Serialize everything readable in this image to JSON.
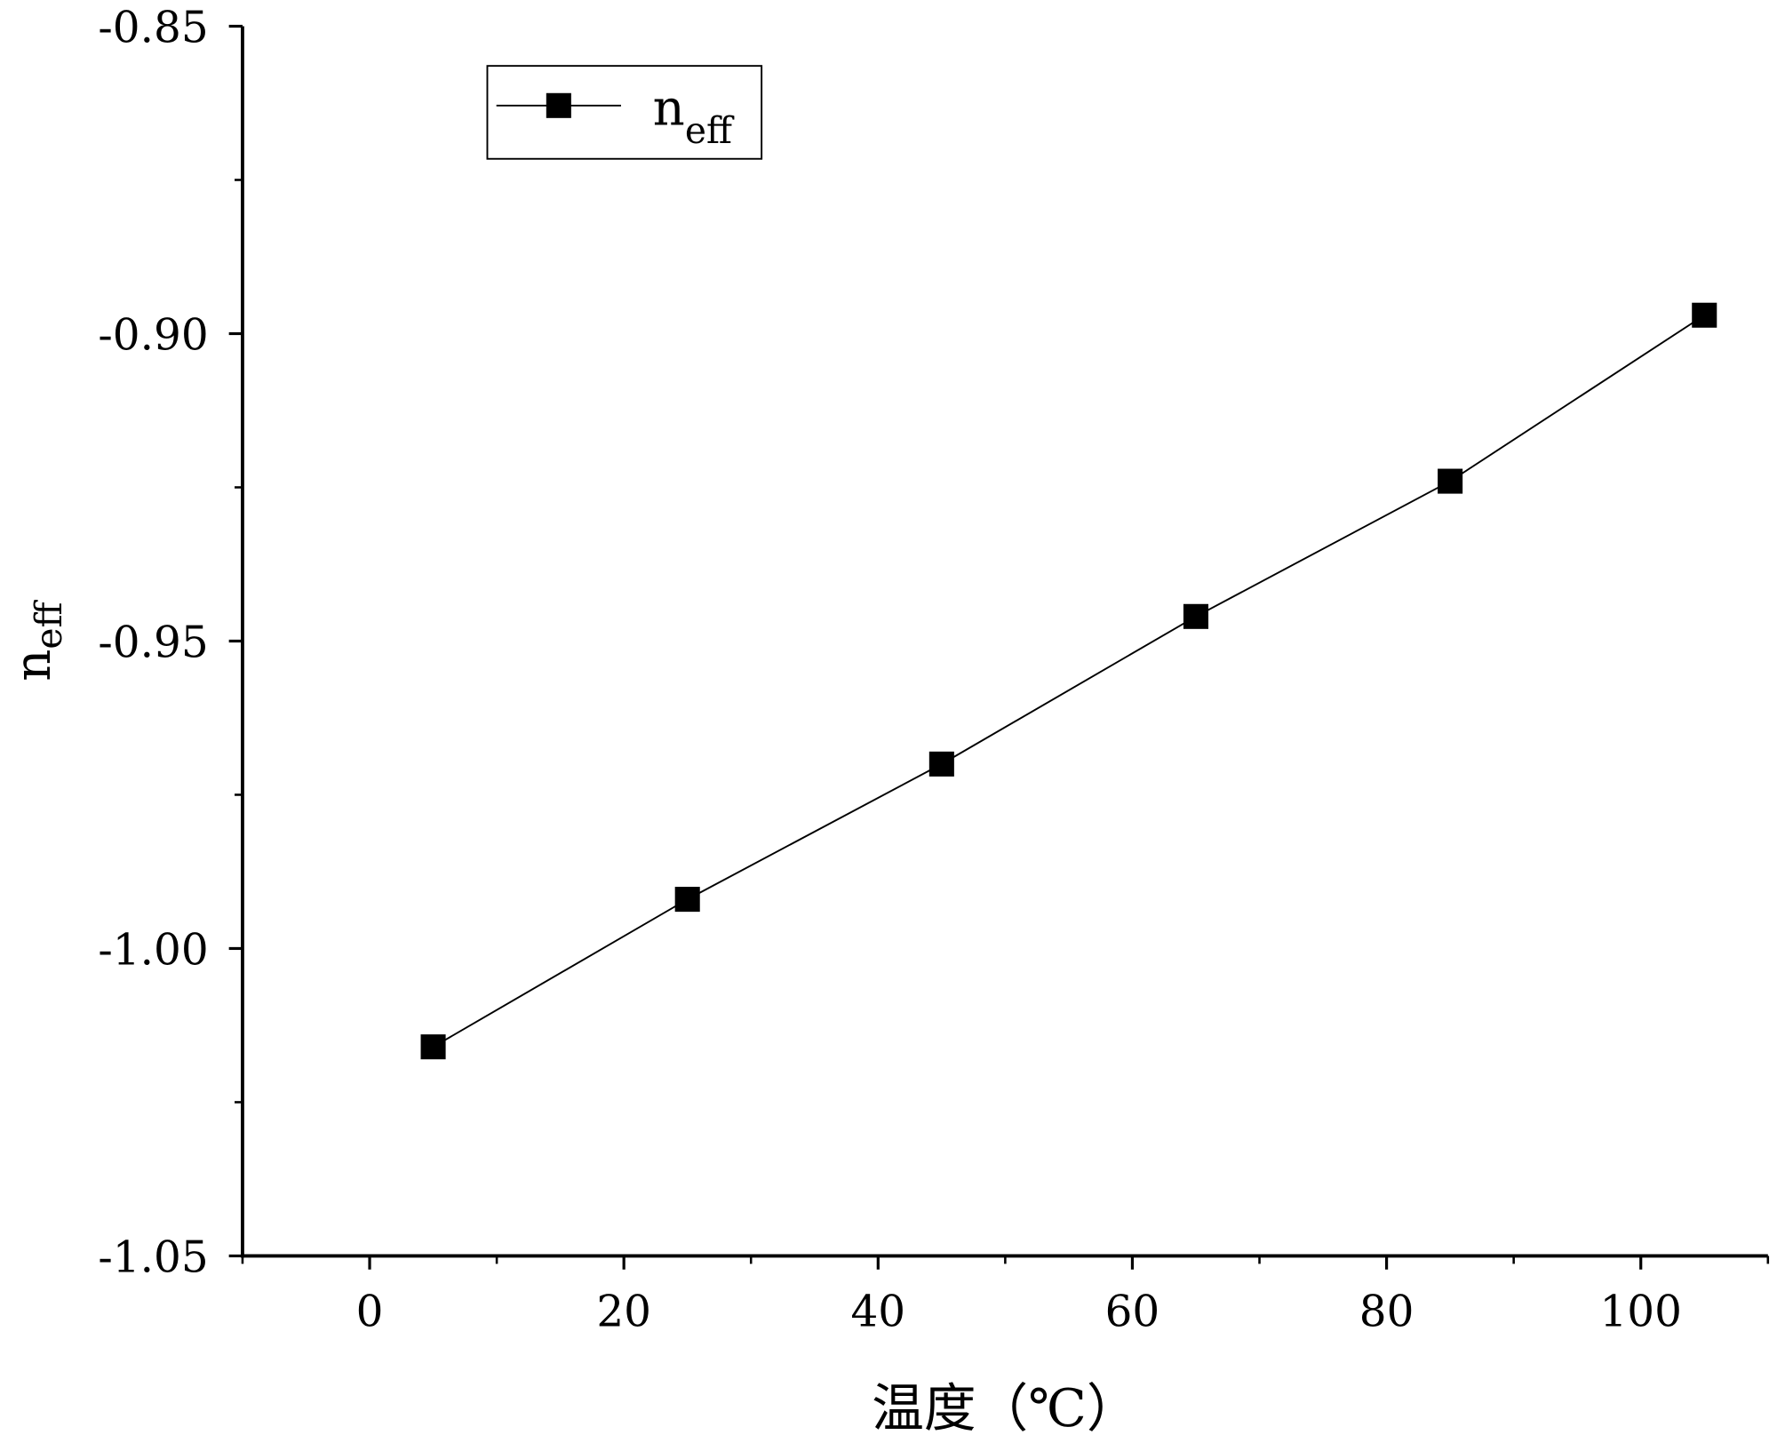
{
  "chart_data": {
    "type": "line",
    "title": "",
    "xlabel": "温度（℃）",
    "ylabel": "n",
    "ylabel_sub": "eff",
    "xlim": [
      -10,
      110
    ],
    "ylim": [
      -1.05,
      -0.85
    ],
    "xticks": [
      0,
      20,
      40,
      60,
      80,
      100
    ],
    "xtick_labels": [
      "0",
      "20",
      "40",
      "60",
      "80",
      "100"
    ],
    "yticks": [
      -1.05,
      -1.0,
      -0.95,
      -0.9,
      -0.85
    ],
    "ytick_labels": [
      "-1.05",
      "-1.00",
      "-0.95",
      "-0.90",
      "-0.85"
    ],
    "grid": false,
    "legend_position": "top-left",
    "series": [
      {
        "name": "n",
        "name_sub": "eff",
        "marker": "square",
        "color": "#000000",
        "x": [
          5,
          25,
          45,
          65,
          85,
          105
        ],
        "y": [
          -1.016,
          -0.992,
          -0.97,
          -0.946,
          -0.924,
          -0.897
        ]
      }
    ]
  }
}
